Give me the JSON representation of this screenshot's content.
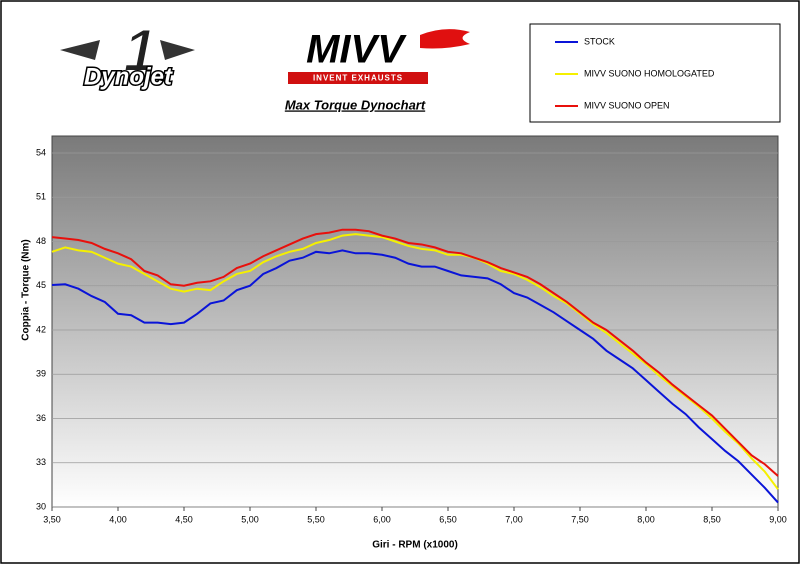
{
  "logos": {
    "dynojet": "Dynojet",
    "dynojet_number": "1",
    "mivv": "MIVV",
    "mivv_tagline": "INVENT EXHAUSTS"
  },
  "chart_data": {
    "type": "line",
    "title": "Max Torque Dynochart",
    "x_label": "Giri - RPM (x1000)",
    "y_label": "Coppia - Torque (Nm)",
    "x": [
      3.5,
      3.6,
      3.7,
      3.8,
      3.9,
      4.0,
      4.1,
      4.2,
      4.3,
      4.4,
      4.5,
      4.6,
      4.7,
      4.8,
      4.9,
      5.0,
      5.1,
      5.2,
      5.3,
      5.4,
      5.5,
      5.6,
      5.7,
      5.8,
      5.9,
      6.0,
      6.1,
      6.2,
      6.3,
      6.4,
      6.5,
      6.6,
      6.7,
      6.8,
      6.9,
      7.0,
      7.1,
      7.2,
      7.3,
      7.4,
      7.5,
      7.6,
      7.7,
      7.8,
      7.9,
      8.0,
      8.1,
      8.2,
      8.3,
      8.4,
      8.5,
      8.6,
      8.7,
      8.8,
      8.9,
      9.0
    ],
    "series": [
      {
        "name": "STOCK",
        "color": "#0a14d8",
        "values": [
          45.05,
          45.1,
          44.8,
          44.3,
          43.9,
          43.1,
          43.0,
          42.5,
          42.5,
          42.4,
          42.5,
          43.1,
          43.8,
          44.0,
          44.7,
          45.0,
          45.8,
          46.2,
          46.7,
          46.9,
          47.3,
          47.2,
          47.4,
          47.2,
          47.2,
          47.1,
          46.9,
          46.5,
          46.3,
          46.3,
          46.0,
          45.7,
          45.6,
          45.5,
          45.1,
          44.5,
          44.2,
          43.7,
          43.2,
          42.6,
          42.0,
          41.4,
          40.6,
          40.0,
          39.4,
          38.6,
          37.8,
          37.0,
          36.3,
          35.4,
          34.6,
          33.8,
          33.1,
          32.2,
          31.3,
          30.3
        ]
      },
      {
        "name": "MIVV SUONO HOMOLOGATED",
        "color": "#f5f000",
        "values": [
          47.3,
          47.6,
          47.4,
          47.3,
          46.9,
          46.5,
          46.3,
          45.8,
          45.3,
          44.8,
          44.6,
          44.8,
          44.7,
          45.3,
          45.8,
          46.0,
          46.6,
          47.0,
          47.3,
          47.5,
          47.9,
          48.1,
          48.4,
          48.5,
          48.4,
          48.3,
          48.0,
          47.7,
          47.5,
          47.4,
          47.1,
          47.1,
          46.9,
          46.5,
          46.0,
          45.8,
          45.4,
          44.9,
          44.3,
          43.8,
          43.1,
          42.4,
          41.8,
          41.1,
          40.4,
          39.7,
          38.9,
          38.2,
          37.5,
          36.8,
          36.0,
          35.1,
          34.3,
          33.3,
          32.4,
          31.2
        ]
      },
      {
        "name": "MIVV SUONO OPEN",
        "color": "#e8100c",
        "values": [
          48.3,
          48.2,
          48.1,
          47.9,
          47.5,
          47.2,
          46.8,
          46.0,
          45.7,
          45.1,
          45.0,
          45.2,
          45.3,
          45.6,
          46.2,
          46.5,
          47.0,
          47.4,
          47.8,
          48.2,
          48.5,
          48.6,
          48.8,
          48.8,
          48.7,
          48.4,
          48.2,
          47.9,
          47.8,
          47.6,
          47.3,
          47.2,
          46.9,
          46.6,
          46.2,
          45.9,
          45.6,
          45.1,
          44.5,
          43.9,
          43.2,
          42.5,
          42.0,
          41.3,
          40.6,
          39.8,
          39.1,
          38.3,
          37.6,
          36.9,
          36.2,
          35.3,
          34.4,
          33.5,
          32.9,
          32.1
        ]
      }
    ],
    "xlim": [
      3.5,
      9.0
    ],
    "xticks": [
      {
        "value": 3.5,
        "label": "3,50"
      },
      {
        "value": 4.0,
        "label": "4,00"
      },
      {
        "value": 4.5,
        "label": "4,50"
      },
      {
        "value": 5.0,
        "label": "5,00"
      },
      {
        "value": 5.5,
        "label": "5,50"
      },
      {
        "value": 6.0,
        "label": "6,00"
      },
      {
        "value": 6.5,
        "label": "6,50"
      },
      {
        "value": 7.0,
        "label": "7,00"
      },
      {
        "value": 7.5,
        "label": "7,50"
      },
      {
        "value": 8.0,
        "label": "8,00"
      },
      {
        "value": 8.5,
        "label": "8,50"
      },
      {
        "value": 9.0,
        "label": "9,00"
      }
    ],
    "ylim": [
      30,
      54
    ],
    "yticks": [
      30,
      33,
      36,
      39,
      42,
      45,
      48,
      51,
      54
    ],
    "grid": true
  }
}
